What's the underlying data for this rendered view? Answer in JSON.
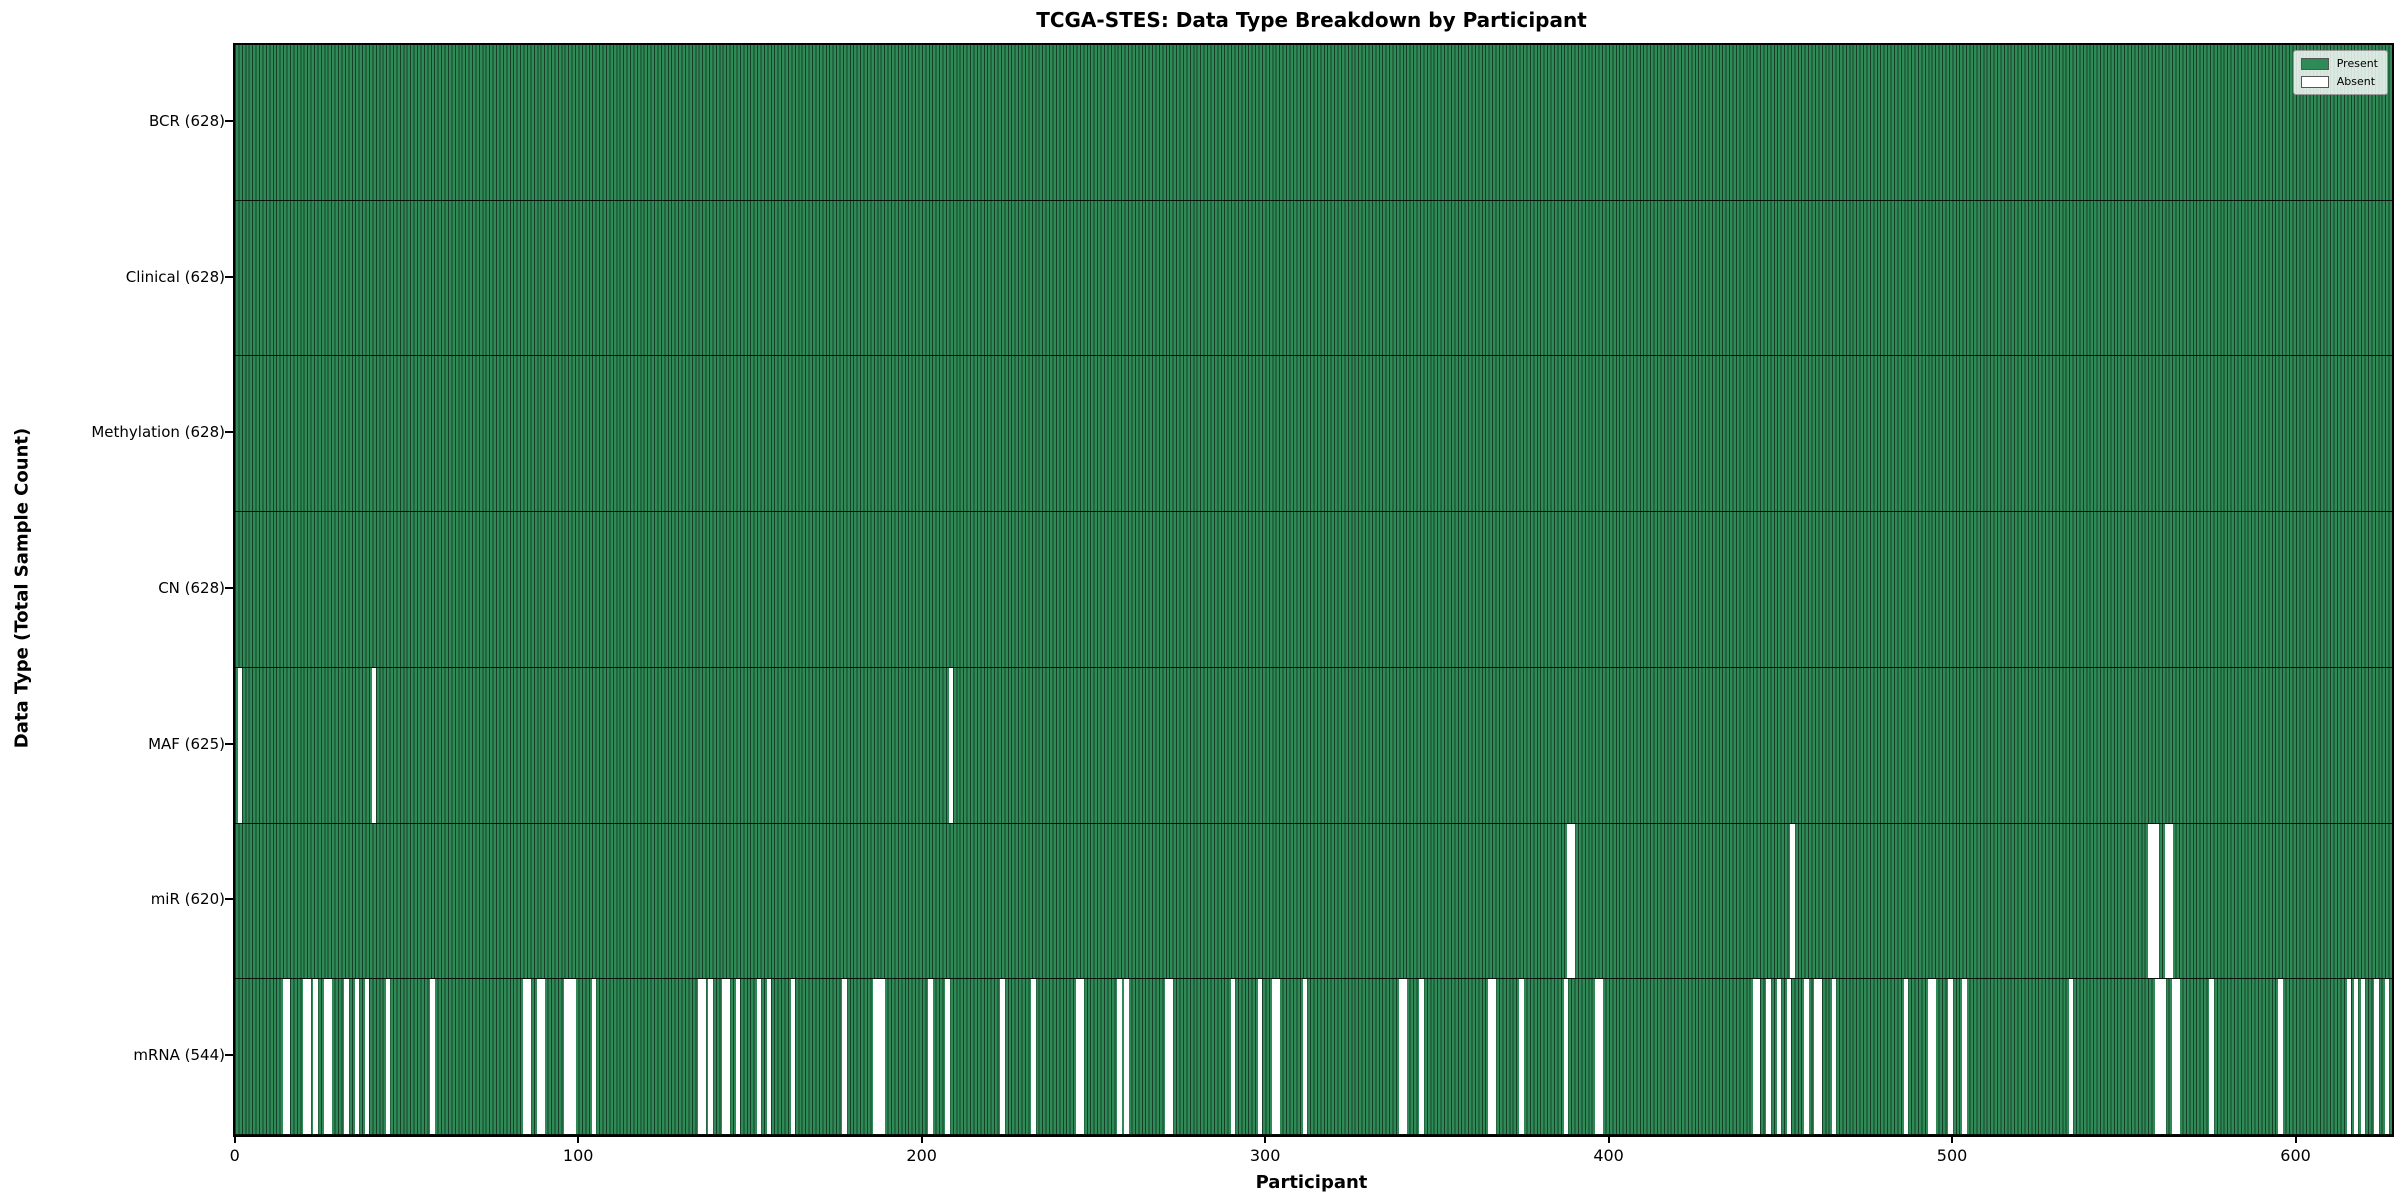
{
  "chart_data": {
    "type": "heatmap",
    "title": "TCGA-STES: Data Type Breakdown by Participant",
    "xlabel": "Participant",
    "ylabel": "Data Type (Total Sample Count)",
    "n_participants": 628,
    "xticks": [
      0,
      100,
      200,
      300,
      400,
      500,
      600
    ],
    "grid": false,
    "legend_position": "upper right",
    "legend": {
      "present_label": "Present",
      "absent_label": "Absent"
    },
    "colors": {
      "present": "#2e8b57",
      "absent": "#ffffff",
      "bar_edge": "rgba(0,0,0,0.55)"
    },
    "rows": [
      {
        "name": "BCR",
        "count": 628,
        "label": "BCR (628)",
        "absent": []
      },
      {
        "name": "Clinical",
        "count": 628,
        "label": "Clinical (628)",
        "absent": []
      },
      {
        "name": "Methylation",
        "count": 628,
        "label": "Methylation (628)",
        "absent": []
      },
      {
        "name": "CN",
        "count": 628,
        "label": "CN (628)",
        "absent": []
      },
      {
        "name": "MAF",
        "count": 625,
        "label": "MAF (625)",
        "absent": [
          1,
          40,
          208
        ]
      },
      {
        "name": "miR",
        "count": 620,
        "label": "miR (620)",
        "absent": [
          388,
          389,
          453,
          557,
          558,
          559,
          562,
          563
        ]
      },
      {
        "name": "mRNA",
        "count": 544,
        "label": "mRNA (544)",
        "absent": [
          14,
          15,
          20,
          21,
          23,
          26,
          27,
          32,
          35,
          38,
          44,
          57,
          84,
          85,
          88,
          89,
          96,
          97,
          98,
          104,
          135,
          136,
          138,
          142,
          143,
          146,
          152,
          155,
          162,
          177,
          186,
          187,
          188,
          202,
          207,
          223,
          232,
          245,
          246,
          257,
          259,
          271,
          272,
          290,
          298,
          302,
          303,
          311,
          339,
          340,
          345,
          365,
          366,
          374,
          387,
          396,
          397,
          442,
          443,
          446,
          449,
          452,
          457,
          460,
          461,
          465,
          486,
          493,
          494,
          499,
          503,
          534,
          559,
          560,
          561,
          564,
          565,
          575,
          595,
          615,
          617,
          619,
          623,
          626
        ]
      }
    ]
  }
}
